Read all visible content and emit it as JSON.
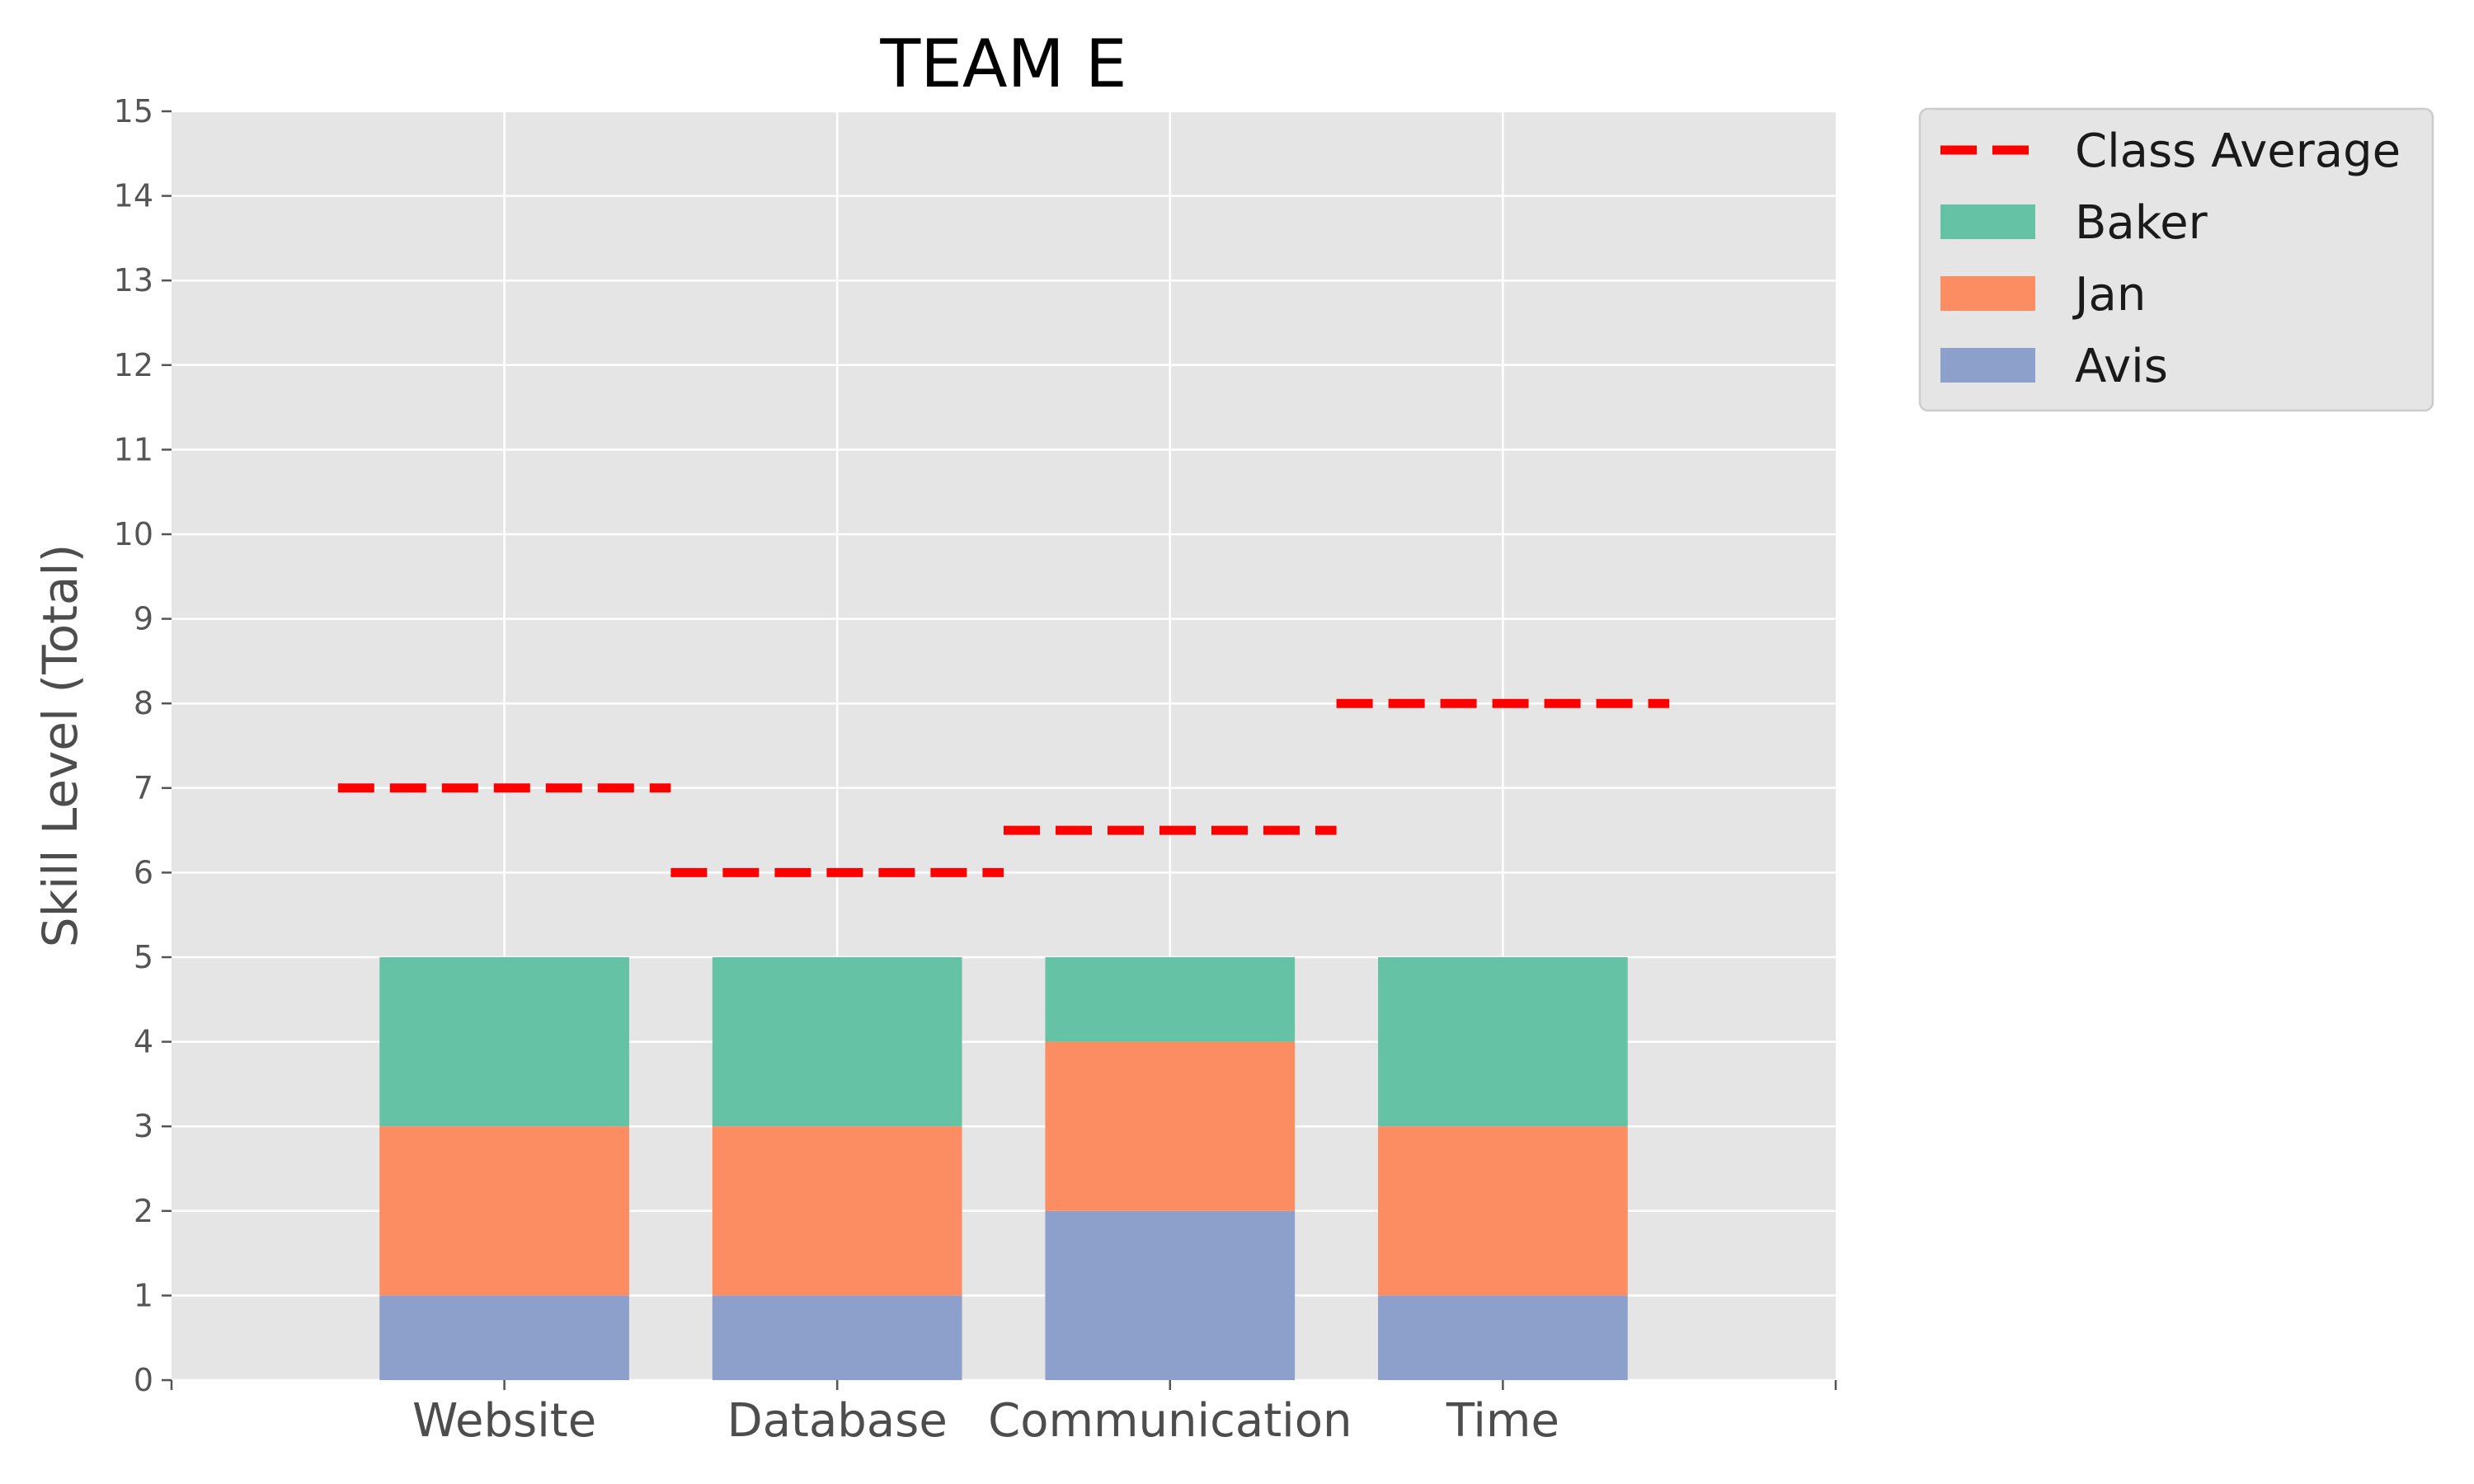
{
  "chart_data": {
    "type": "bar",
    "stacked": true,
    "title": "TEAM E",
    "xlabel": "",
    "ylabel": "Skill Level (Total)",
    "ylim": [
      0,
      15
    ],
    "yticks": [
      0,
      1,
      2,
      3,
      4,
      5,
      6,
      7,
      8,
      9,
      10,
      11,
      12,
      13,
      14,
      15
    ],
    "xlim": [
      -1,
      4
    ],
    "categories": [
      "Website",
      "Database",
      "Communication",
      "Time"
    ],
    "series": [
      {
        "name": "Avis",
        "values": [
          1,
          1,
          2,
          1
        ],
        "color": "#8da0cb"
      },
      {
        "name": "Jan",
        "values": [
          2,
          2,
          2,
          2
        ],
        "color": "#fc8d62"
      },
      {
        "name": "Baker",
        "values": [
          2,
          2,
          1,
          2
        ],
        "color": "#66c2a5"
      }
    ],
    "reference": {
      "name": "Class Average",
      "values": [
        7,
        6,
        6.5,
        8
      ],
      "color": "#ff0000",
      "style": "dashed"
    },
    "legend": {
      "placement": "outside-top-right",
      "order": [
        "Class Average",
        "Baker",
        "Jan",
        "Avis"
      ]
    },
    "grid": true,
    "background": "#e5e5e5"
  }
}
